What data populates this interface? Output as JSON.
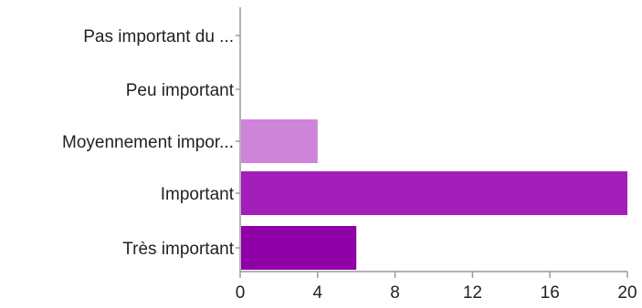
{
  "chart_data": {
    "type": "bar",
    "orientation": "horizontal",
    "categories": [
      "Pas important du ...",
      "Peu important",
      "Moyennement impor...",
      "Important",
      "Très important"
    ],
    "values": [
      0,
      0,
      4,
      20,
      6
    ],
    "bar_colors": [
      "#d6a4e0",
      "#d6a4e0",
      "#ce84d8",
      "#a11fb8",
      "#8f00a6"
    ],
    "x_ticks": [
      "0",
      "4",
      "8",
      "12",
      "16",
      "20"
    ],
    "xlim": [
      0,
      20
    ],
    "title": "",
    "xlabel": "",
    "ylabel": "",
    "grid": false,
    "legend": "none"
  }
}
